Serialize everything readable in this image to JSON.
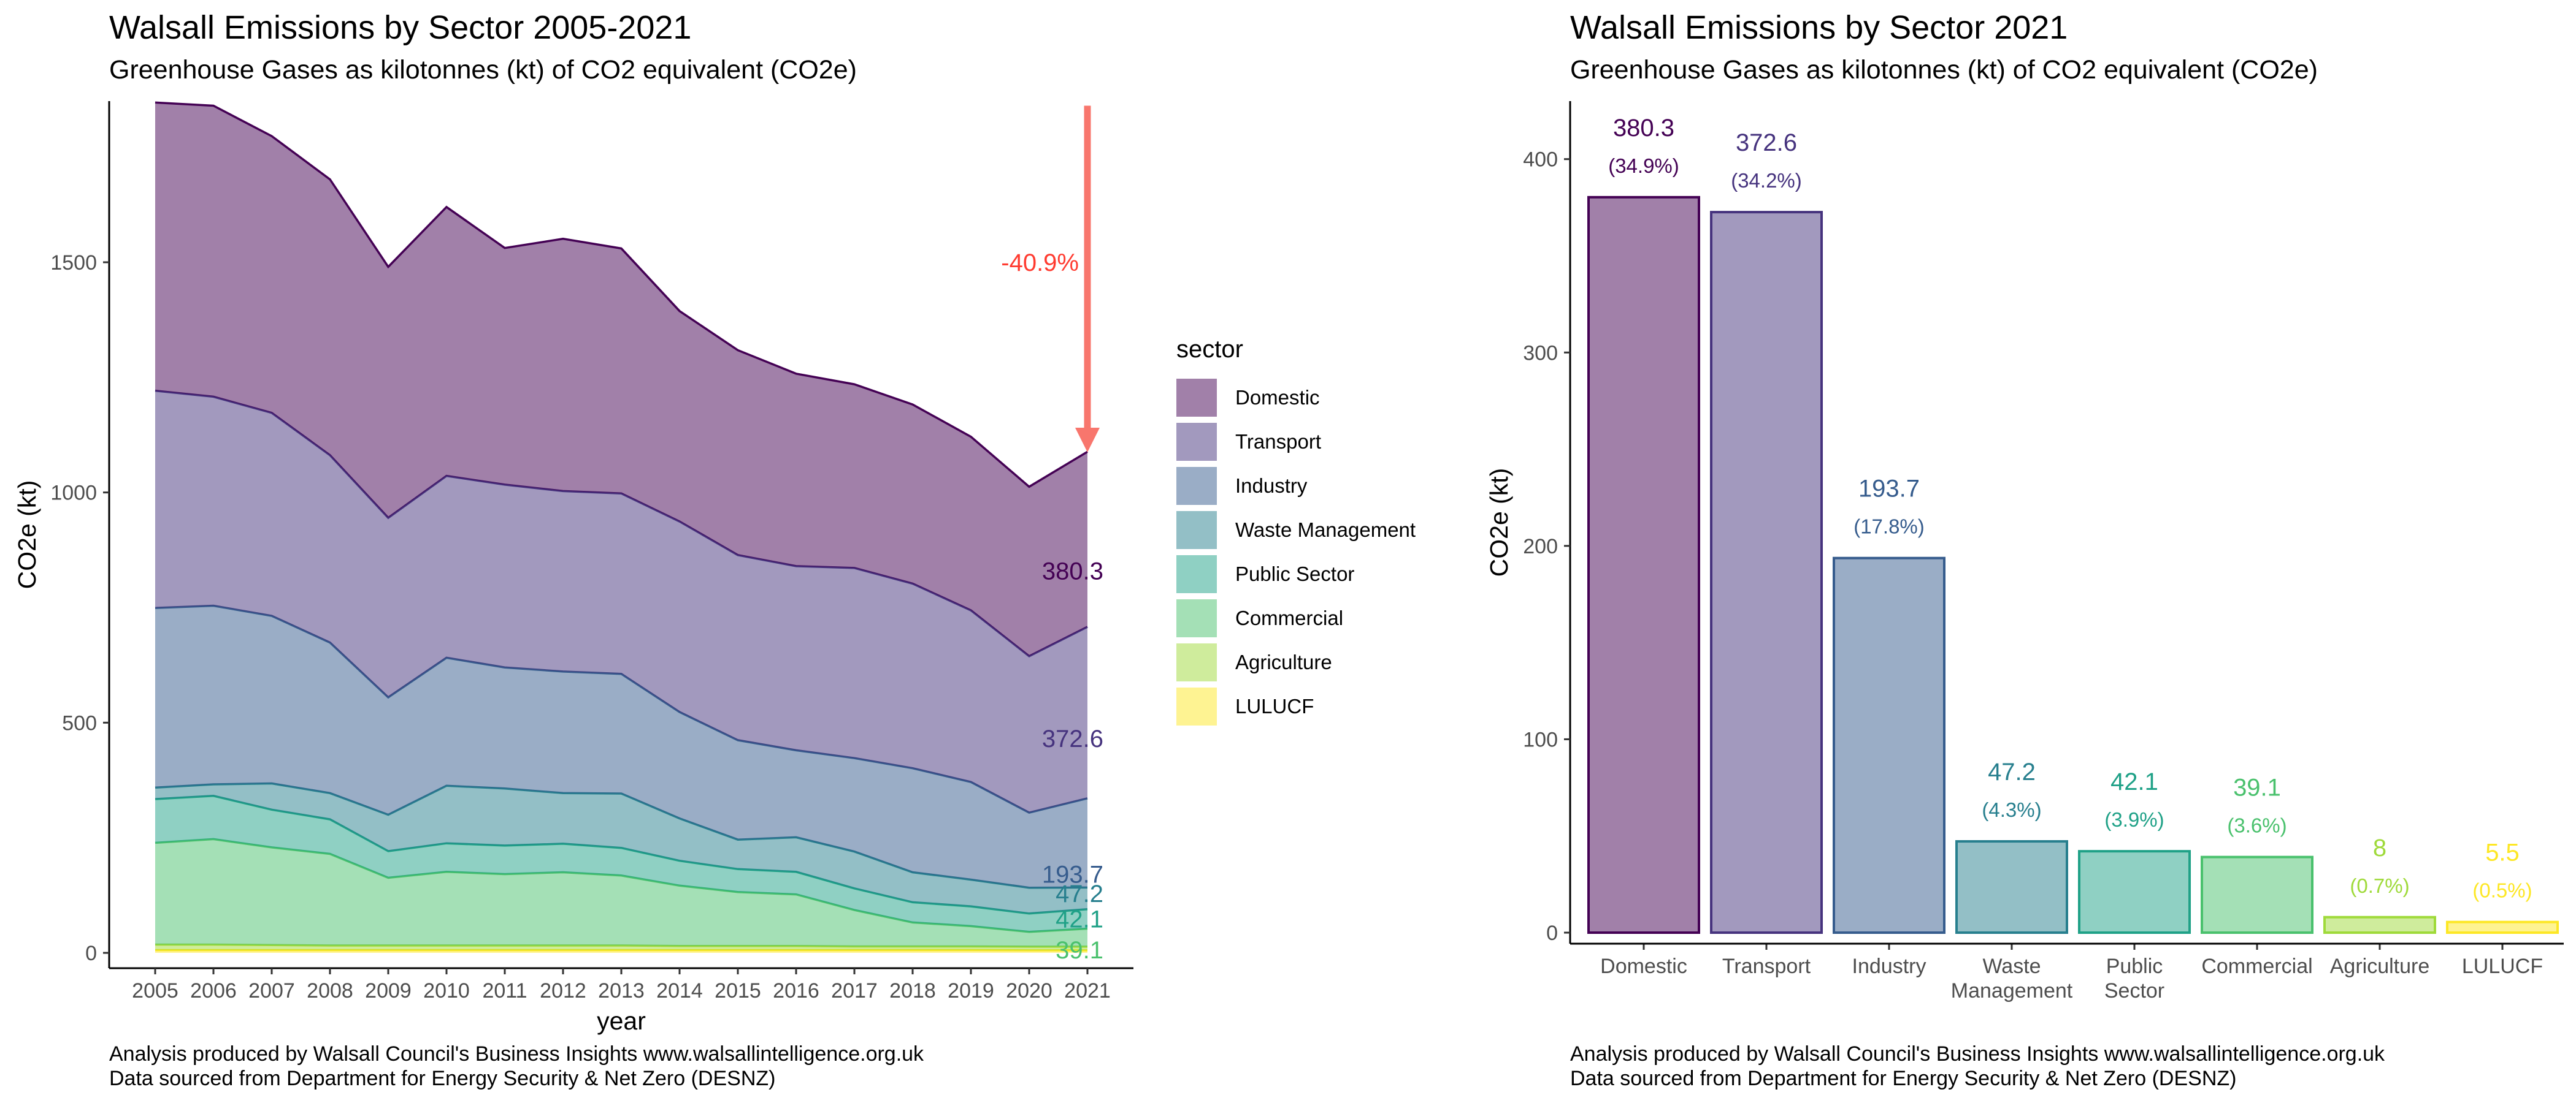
{
  "left": {
    "title": "Walsall Emissions by Sector 2005-2021",
    "subtitle": "Greenhouse Gases as kilotonnes (kt) of CO2 equivalent (CO2e)",
    "caption_line1": "Analysis produced by Walsall Council's Business Insights www.walsallintelligence.org.uk",
    "caption_line2": "Data sourced from Department for Energy Security & Net Zero (DESNZ)"
  },
  "right": {
    "title": "Walsall Emissions by Sector 2021",
    "subtitle": "Greenhouse Gases as kilotonnes (kt) of CO2 equivalent (CO2e)",
    "caption_line1": "Analysis produced by Walsall Council's Business Insights www.walsallintelligence.org.uk",
    "caption_line2": "Data sourced from Department for Energy Security & Net Zero (DESNZ)"
  },
  "legend": {
    "title": "sector"
  },
  "chart_data": [
    {
      "type": "area",
      "stacked": true,
      "title": "Walsall Emissions by Sector 2005-2021",
      "subtitle": "Greenhouse Gases as kilotonnes (kt) of CO2 equivalent (CO2e)",
      "xlabel": "year",
      "ylabel": "CO2e (kt)",
      "x": [
        2005,
        2006,
        2007,
        2008,
        2009,
        2010,
        2011,
        2012,
        2013,
        2014,
        2015,
        2016,
        2017,
        2018,
        2019,
        2020,
        2021
      ],
      "ylim": [
        0,
        1850
      ],
      "yticks": [
        0,
        500,
        1000,
        1500
      ],
      "grid": false,
      "legend_position": "right",
      "series": [
        {
          "name": "Domestic",
          "color": "#440154",
          "values": [
            626,
            632,
            601,
            599,
            545,
            584,
            514,
            548,
            532,
            457,
            445,
            418,
            399,
            389,
            377,
            368,
            380.3
          ]
        },
        {
          "name": "Transport",
          "color": "#46337E",
          "values": [
            472,
            454,
            441,
            407,
            390,
            395,
            397,
            392,
            392,
            414,
            402,
            400,
            413,
            401,
            373,
            340,
            372.6
          ]
        },
        {
          "name": "Industry",
          "color": "#365C8D",
          "values": [
            390,
            388,
            364,
            327,
            255,
            278,
            263,
            264,
            260,
            231,
            216,
            189,
            203,
            226,
            212,
            163,
            193.7
          ]
        },
        {
          "name": "Waste Management",
          "color": "#277F8E",
          "values": [
            25,
            25,
            57,
            57,
            79,
            125,
            124,
            110,
            118,
            92,
            64,
            75,
            80,
            65,
            58,
            56,
            47.2
          ]
        },
        {
          "name": "Public Sector",
          "color": "#1FA187",
          "values": [
            95,
            94,
            82,
            75,
            58,
            62,
            62,
            62,
            60,
            54,
            50,
            49,
            47,
            44,
            43,
            40,
            42.1
          ]
        },
        {
          "name": "Commercial",
          "color": "#4AC16D",
          "values": [
            221,
            229,
            212,
            199,
            147,
            160,
            155,
            159,
            152,
            131,
            117,
            112,
            79,
            52,
            44,
            32,
            39.1
          ]
        },
        {
          "name": "Agriculture",
          "color": "#9FDA3A",
          "values": [
            12,
            12,
            11,
            10,
            10,
            10,
            10,
            10,
            10,
            9,
            9,
            9,
            8,
            8,
            8,
            8,
            8
          ]
        },
        {
          "name": "LULUCF",
          "color": "#FDE725",
          "values": [
            6,
            6,
            6,
            6,
            6,
            6,
            6,
            6,
            6,
            6,
            6,
            6,
            6,
            6,
            6,
            5.5,
            5.5
          ]
        }
      ],
      "end_labels": [
        "380.3",
        "372.6",
        "193.7",
        "47.2",
        "42.1",
        "39.1"
      ],
      "annotation": {
        "text": "-40.9%",
        "color": "#F8766D",
        "arrow_from_year": 2021,
        "arrow_from_value": 1840,
        "arrow_to_value": 1090
      }
    },
    {
      "type": "bar",
      "title": "Walsall Emissions by Sector 2021",
      "subtitle": "Greenhouse Gases as kilotonnes (kt) of CO2 equivalent (CO2e)",
      "xlabel": "",
      "ylabel": "CO2e (kt)",
      "ylim": [
        0,
        430
      ],
      "yticks": [
        0,
        100,
        200,
        300,
        400
      ],
      "grid": false,
      "categories": [
        "Domestic",
        "Transport",
        "Industry",
        "Waste Management",
        "Public Sector",
        "Commercial",
        "Agriculture",
        "LULUCF"
      ],
      "category_lines": [
        [
          "Domestic"
        ],
        [
          "Transport"
        ],
        [
          "Industry"
        ],
        [
          "Waste",
          "Management"
        ],
        [
          "Public",
          "Sector"
        ],
        [
          "Commercial"
        ],
        [
          "Agriculture"
        ],
        [
          "LULUCF"
        ]
      ],
      "values": [
        380.3,
        372.6,
        193.7,
        47.2,
        42.1,
        39.1,
        8,
        5.5
      ],
      "value_labels": [
        "380.3",
        "372.6",
        "193.7",
        "47.2",
        "42.1",
        "39.1",
        "8",
        "5.5"
      ],
      "percent_labels": [
        "(34.9%)",
        "(34.2%)",
        "(17.8%)",
        "(4.3%)",
        "(3.9%)",
        "(3.6%)",
        "(0.7%)",
        "(0.5%)"
      ],
      "colors": [
        "#440154",
        "#46337E",
        "#365C8D",
        "#277F8E",
        "#1FA187",
        "#4AC16D",
        "#9FDA3A",
        "#FDE725"
      ]
    }
  ]
}
